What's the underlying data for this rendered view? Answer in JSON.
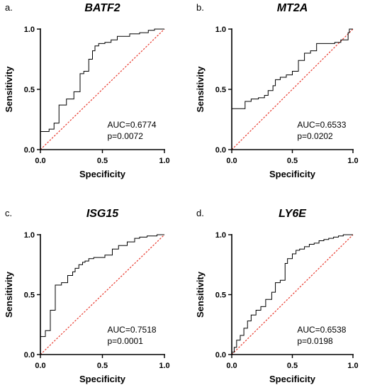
{
  "chart_data": [
    {
      "type": "line",
      "panel": "a.",
      "title": "BATF2",
      "xlabel": "Specificity",
      "ylabel": "Sensitivity",
      "xlim": [
        0,
        1
      ],
      "ylim": [
        0,
        1
      ],
      "x_ticks": [
        "0.0",
        "0.5",
        "1.0"
      ],
      "y_ticks": [
        "0.0",
        "0.5",
        "1.0"
      ],
      "auc_label": "AUC=0.6774",
      "p_label": "p=0.0072",
      "series": [
        {
          "x": [
            0,
            0,
            0.07,
            0.07,
            0.11,
            0.11,
            0.15,
            0.15,
            0.21,
            0.21,
            0.27,
            0.27,
            0.32,
            0.32,
            0.35,
            0.35,
            0.39,
            0.39,
            0.42,
            0.42,
            0.44,
            0.44,
            0.47,
            0.47,
            0.52,
            0.52,
            0.57,
            0.57,
            0.62,
            0.62,
            0.72,
            0.72,
            0.8,
            0.8,
            0.87,
            0.87,
            0.92,
            0.92,
            1.0
          ],
          "y": [
            0,
            0.15,
            0.15,
            0.17,
            0.17,
            0.22,
            0.22,
            0.37,
            0.37,
            0.42,
            0.42,
            0.48,
            0.48,
            0.63,
            0.63,
            0.65,
            0.65,
            0.75,
            0.75,
            0.82,
            0.82,
            0.86,
            0.86,
            0.88,
            0.88,
            0.89,
            0.89,
            0.91,
            0.91,
            0.94,
            0.94,
            0.96,
            0.96,
            0.97,
            0.97,
            0.99,
            0.99,
            1.0,
            1.0
          ]
        }
      ],
      "reference_line": [
        [
          0,
          0
        ],
        [
          1,
          1
        ]
      ]
    },
    {
      "type": "line",
      "panel": "b.",
      "title": "MT2A",
      "xlabel": "Specificity",
      "ylabel": "Sensitivity",
      "xlim": [
        0,
        1
      ],
      "ylim": [
        0,
        1
      ],
      "x_ticks": [
        "0.0",
        "0.5",
        "1.0"
      ],
      "y_ticks": [
        "0.0",
        "0.5",
        "1.0"
      ],
      "auc_label": "AUC=0.6533",
      "p_label": "p=0.0202",
      "series": [
        {
          "x": [
            0,
            0,
            0.11,
            0.11,
            0.16,
            0.16,
            0.22,
            0.22,
            0.27,
            0.27,
            0.3,
            0.3,
            0.34,
            0.34,
            0.36,
            0.36,
            0.4,
            0.4,
            0.45,
            0.45,
            0.5,
            0.5,
            0.55,
            0.55,
            0.6,
            0.6,
            0.65,
            0.65,
            0.7,
            0.7,
            0.85,
            0.85,
            0.9,
            0.9,
            0.96,
            0.96,
            0.97,
            0.97,
            1.0
          ],
          "y": [
            0,
            0.34,
            0.34,
            0.4,
            0.4,
            0.42,
            0.42,
            0.43,
            0.43,
            0.45,
            0.45,
            0.49,
            0.49,
            0.53,
            0.53,
            0.58,
            0.58,
            0.6,
            0.6,
            0.62,
            0.62,
            0.65,
            0.65,
            0.74,
            0.74,
            0.8,
            0.8,
            0.82,
            0.82,
            0.88,
            0.88,
            0.89,
            0.89,
            0.91,
            0.91,
            0.97,
            0.97,
            1.0,
            1.0
          ]
        }
      ],
      "reference_line": [
        [
          0,
          0
        ],
        [
          1,
          1
        ]
      ]
    },
    {
      "type": "line",
      "panel": "c.",
      "title": "ISG15",
      "xlabel": "Specificity",
      "ylabel": "Sensitivity",
      "xlim": [
        0,
        1
      ],
      "ylim": [
        0,
        1
      ],
      "x_ticks": [
        "0.0",
        "0.5",
        "1.0"
      ],
      "y_ticks": [
        "0.0",
        "0.5",
        "1.0"
      ],
      "auc_label": "AUC=0.7518",
      "p_label": "p=0.0001",
      "series": [
        {
          "x": [
            0,
            0,
            0.04,
            0.04,
            0.08,
            0.08,
            0.12,
            0.12,
            0.17,
            0.17,
            0.22,
            0.22,
            0.26,
            0.26,
            0.28,
            0.28,
            0.31,
            0.31,
            0.34,
            0.34,
            0.36,
            0.36,
            0.39,
            0.39,
            0.43,
            0.43,
            0.52,
            0.52,
            0.58,
            0.58,
            0.63,
            0.63,
            0.7,
            0.7,
            0.76,
            0.76,
            0.8,
            0.8,
            0.86,
            0.86,
            0.94,
            0.94,
            1.0
          ],
          "y": [
            0,
            0.15,
            0.15,
            0.2,
            0.2,
            0.37,
            0.37,
            0.58,
            0.58,
            0.6,
            0.6,
            0.66,
            0.66,
            0.69,
            0.69,
            0.72,
            0.72,
            0.75,
            0.75,
            0.77,
            0.77,
            0.78,
            0.78,
            0.8,
            0.8,
            0.81,
            0.81,
            0.83,
            0.83,
            0.88,
            0.88,
            0.91,
            0.91,
            0.94,
            0.94,
            0.97,
            0.97,
            0.98,
            0.98,
            0.99,
            0.99,
            1.0,
            1.0
          ]
        }
      ],
      "reference_line": [
        [
          0,
          0
        ],
        [
          1,
          1
        ]
      ]
    },
    {
      "type": "line",
      "panel": "d.",
      "title": "LY6E",
      "xlabel": "Specificity",
      "ylabel": "Sensitivity",
      "xlim": [
        0,
        1
      ],
      "ylim": [
        0,
        1
      ],
      "x_ticks": [
        "0.0",
        "0.5",
        "1.0"
      ],
      "y_ticks": [
        "0.0",
        "0.5",
        "1.0"
      ],
      "auc_label": "AUC=0.6538",
      "p_label": "p=0.0198",
      "series": [
        {
          "x": [
            0,
            0,
            0.02,
            0.02,
            0.04,
            0.04,
            0.07,
            0.07,
            0.1,
            0.1,
            0.13,
            0.13,
            0.16,
            0.16,
            0.2,
            0.2,
            0.24,
            0.24,
            0.28,
            0.28,
            0.33,
            0.33,
            0.36,
            0.36,
            0.4,
            0.4,
            0.44,
            0.44,
            0.46,
            0.46,
            0.5,
            0.5,
            0.53,
            0.53,
            0.56,
            0.56,
            0.6,
            0.6,
            0.64,
            0.64,
            0.68,
            0.68,
            0.72,
            0.72,
            0.76,
            0.76,
            0.8,
            0.8,
            0.84,
            0.84,
            0.88,
            0.88,
            0.92,
            0.92,
            1.0
          ],
          "y": [
            0,
            0.02,
            0.02,
            0.06,
            0.06,
            0.12,
            0.12,
            0.16,
            0.16,
            0.22,
            0.22,
            0.28,
            0.28,
            0.33,
            0.33,
            0.37,
            0.37,
            0.4,
            0.4,
            0.46,
            0.46,
            0.52,
            0.52,
            0.6,
            0.6,
            0.62,
            0.62,
            0.76,
            0.76,
            0.8,
            0.8,
            0.84,
            0.84,
            0.87,
            0.87,
            0.88,
            0.88,
            0.9,
            0.9,
            0.92,
            0.92,
            0.93,
            0.93,
            0.95,
            0.95,
            0.96,
            0.96,
            0.97,
            0.97,
            0.98,
            0.98,
            0.99,
            0.99,
            1.0,
            1.0
          ]
        }
      ],
      "reference_line": [
        [
          0,
          0
        ],
        [
          1,
          1
        ]
      ]
    }
  ],
  "colors": {
    "roc_line": "#000000",
    "reference_line": "#e8382c",
    "axis": "#000000"
  }
}
